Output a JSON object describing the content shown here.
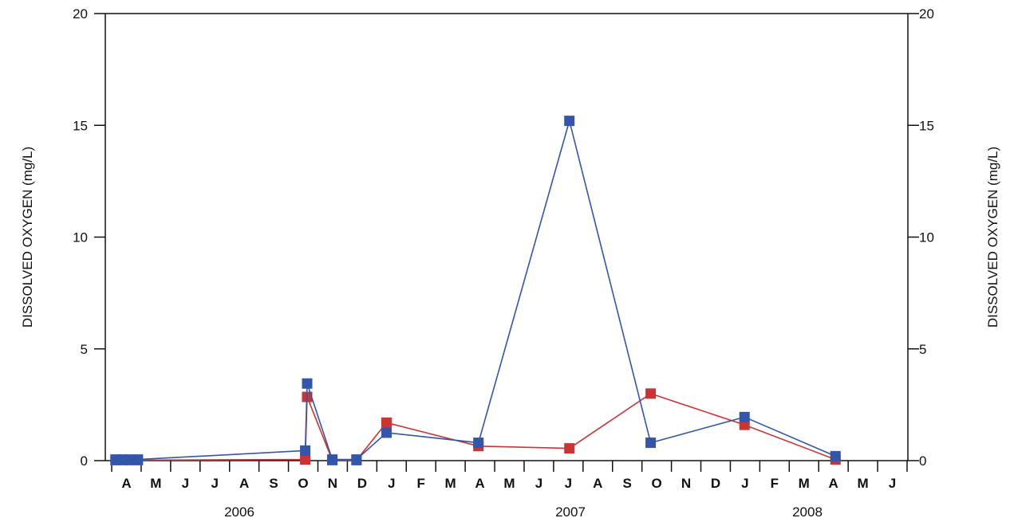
{
  "chart_data": {
    "type": "line",
    "title": "",
    "xlabel": "",
    "ylabel": "DISSOLVED OXYGEN (mg/L)",
    "ylabel_right": "DISSOLVED OXYGEN (mg/L)",
    "ylim": [
      0,
      20
    ],
    "yticks": [
      0,
      5,
      10,
      15,
      20
    ],
    "grid": false,
    "months": [
      "A",
      "M",
      "J",
      "J",
      "A",
      "S",
      "O",
      "N",
      "D",
      "J",
      "F",
      "M",
      "A",
      "M",
      "J",
      "J",
      "A",
      "S",
      "O",
      "N",
      "D",
      "J",
      "F",
      "M",
      "A",
      "M",
      "J"
    ],
    "years": [
      "2006",
      "2007",
      "2008"
    ],
    "series": [
      {
        "color": "#3355aa",
        "x": [
          "2006-04-05",
          "2006-04-12",
          "2006-04-20",
          "2006-04-28",
          "2006-10-18",
          "2006-10-20",
          "2006-11-15",
          "2006-12-10",
          "2007-01-10",
          "2007-04-15",
          "2007-07-18",
          "2007-10-10",
          "2008-01-15",
          "2008-04-18"
        ],
        "values": [
          0.05,
          0.05,
          0.05,
          0.05,
          0.45,
          3.45,
          0.05,
          0.05,
          1.25,
          0.8,
          15.2,
          0.8,
          1.95,
          0.2
        ]
      },
      {
        "color": "#cc3333",
        "x": [
          "2006-04-05",
          "2006-04-12",
          "2006-04-20",
          "2006-04-28",
          "2006-10-18",
          "2006-10-20",
          "2006-11-15",
          "2006-12-10",
          "2007-01-10",
          "2007-04-15",
          "2007-07-18",
          "2007-10-10",
          "2008-01-15",
          "2008-04-18"
        ],
        "values": [
          0.02,
          0.02,
          0.02,
          0.02,
          0.05,
          2.85,
          0.02,
          0.02,
          1.7,
          0.65,
          0.55,
          3.0,
          1.6,
          0.05
        ]
      }
    ]
  }
}
